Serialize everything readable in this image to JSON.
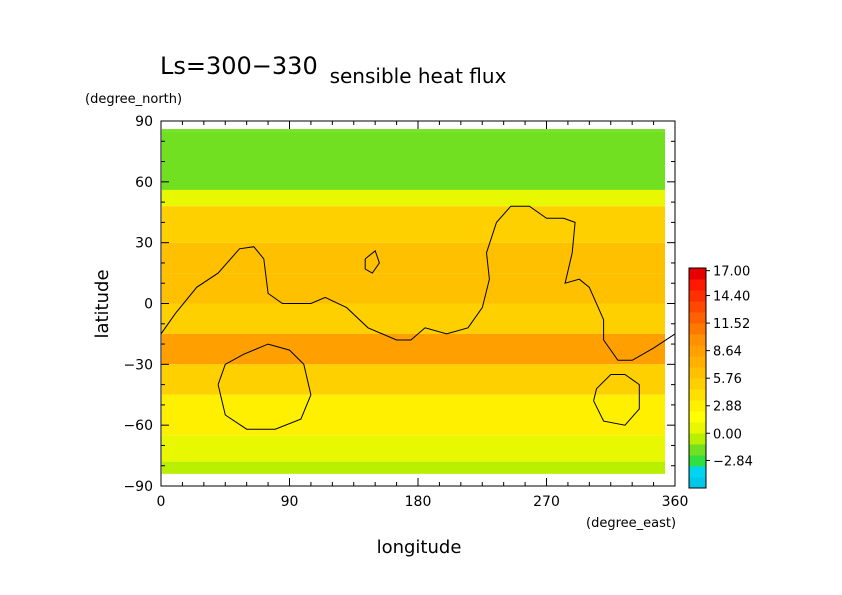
{
  "chart_data": {
    "type": "heatmap",
    "period_label": "Ls=300−330",
    "title": "sensible heat flux",
    "xlabel": "longitude",
    "ylabel": "latitude",
    "x_unit": "(degree_east)",
    "y_unit": "(degree_north)",
    "xlim": [
      0,
      360
    ],
    "ylim": [
      -90,
      90
    ],
    "x_ticks": [
      "0",
      "90",
      "180",
      "270",
      "360"
    ],
    "y_ticks": [
      "90",
      "60",
      "30",
      "0",
      "−30",
      "−60",
      "−90"
    ],
    "colorbar": {
      "labels": [
        "17.00",
        "14.40",
        "11.52",
        "8.64",
        "5.76",
        "2.88",
        "0.00",
        "−2.84"
      ],
      "range": [
        -5.72,
        17.28
      ],
      "colors": [
        "#00c8e8",
        "#00d4f0",
        "#30e040",
        "#70e020",
        "#b8f000",
        "#e8f800",
        "#ffff00",
        "#fff000",
        "#ffe000",
        "#ffd000",
        "#ffc000",
        "#ffb000",
        "#ffa000",
        "#ff9000",
        "#ff7800",
        "#ff6000",
        "#ff4800",
        "#ff3000",
        "#ff1800",
        "#e80000"
      ]
    },
    "field": {
      "lat_rows": [
        {
          "lat": 87.5,
          "band": [
            85,
            90
          ],
          "value": -1.5
        },
        {
          "lat": 70,
          "band": [
            56,
            85
          ],
          "value": -1.5
        },
        {
          "lat": 52,
          "band": [
            48,
            56
          ],
          "value": 1.0
        },
        {
          "lat": 40,
          "band": [
            30,
            48
          ],
          "value": 5.5
        },
        {
          "lat": 25,
          "band": [
            15,
            30
          ],
          "value": 6.5
        },
        {
          "lat": 10,
          "band": [
            0,
            15
          ],
          "value": 6.0
        },
        {
          "lat": -8,
          "band": [
            -15,
            0
          ],
          "value": 5.5
        },
        {
          "lat": -22,
          "band": [
            -30,
            -15
          ],
          "value": 8.5
        },
        {
          "lat": -38,
          "band": [
            -45,
            -30
          ],
          "value": 5.0
        },
        {
          "lat": -55,
          "band": [
            -65,
            -45
          ],
          "value": 3.0
        },
        {
          "lat": -72,
          "band": [
            -78,
            -65
          ],
          "value": 1.0
        },
        {
          "lat": -84,
          "band": [
            -90,
            -78
          ],
          "value": -0.5
        }
      ]
    },
    "contours": [
      {
        "name": "continent",
        "points": [
          [
            0,
            -15
          ],
          [
            10,
            -5
          ],
          [
            25,
            8
          ],
          [
            40,
            15
          ],
          [
            55,
            27
          ],
          [
            65,
            28
          ],
          [
            72,
            22
          ],
          [
            75,
            5
          ],
          [
            85,
            0
          ],
          [
            105,
            0
          ],
          [
            115,
            3
          ],
          [
            130,
            -2
          ],
          [
            145,
            -12
          ],
          [
            165,
            -18
          ],
          [
            175,
            -18
          ],
          [
            185,
            -12
          ],
          [
            200,
            -15
          ],
          [
            215,
            -12
          ],
          [
            225,
            -2
          ],
          [
            230,
            12
          ],
          [
            228,
            25
          ],
          [
            235,
            40
          ],
          [
            245,
            48
          ],
          [
            258,
            48
          ],
          [
            270,
            42
          ],
          [
            282,
            42
          ],
          [
            290,
            40
          ],
          [
            288,
            25
          ],
          [
            283,
            10
          ],
          [
            293,
            12
          ],
          [
            300,
            8
          ],
          [
            310,
            -8
          ],
          [
            310,
            -18
          ],
          [
            320,
            -28
          ],
          [
            330,
            -28
          ],
          [
            345,
            -22
          ],
          [
            360,
            -15
          ]
        ]
      },
      {
        "name": "island",
        "points": [
          [
            143,
            22
          ],
          [
            150,
            26
          ],
          [
            153,
            20
          ],
          [
            148,
            15
          ],
          [
            143,
            17
          ],
          [
            143,
            22
          ]
        ]
      },
      {
        "name": "crater-west",
        "points": [
          [
            40,
            -40
          ],
          [
            45,
            -55
          ],
          [
            60,
            -62
          ],
          [
            80,
            -62
          ],
          [
            98,
            -57
          ],
          [
            105,
            -45
          ],
          [
            100,
            -30
          ],
          [
            90,
            -23
          ],
          [
            75,
            -20
          ],
          [
            58,
            -25
          ],
          [
            45,
            -30
          ],
          [
            40,
            -40
          ]
        ]
      },
      {
        "name": "crater-east",
        "points": [
          [
            303,
            -48
          ],
          [
            310,
            -58
          ],
          [
            325,
            -60
          ],
          [
            335,
            -52
          ],
          [
            335,
            -40
          ],
          [
            325,
            -35
          ],
          [
            315,
            -35
          ],
          [
            305,
            -42
          ],
          [
            303,
            -48
          ]
        ]
      }
    ]
  }
}
